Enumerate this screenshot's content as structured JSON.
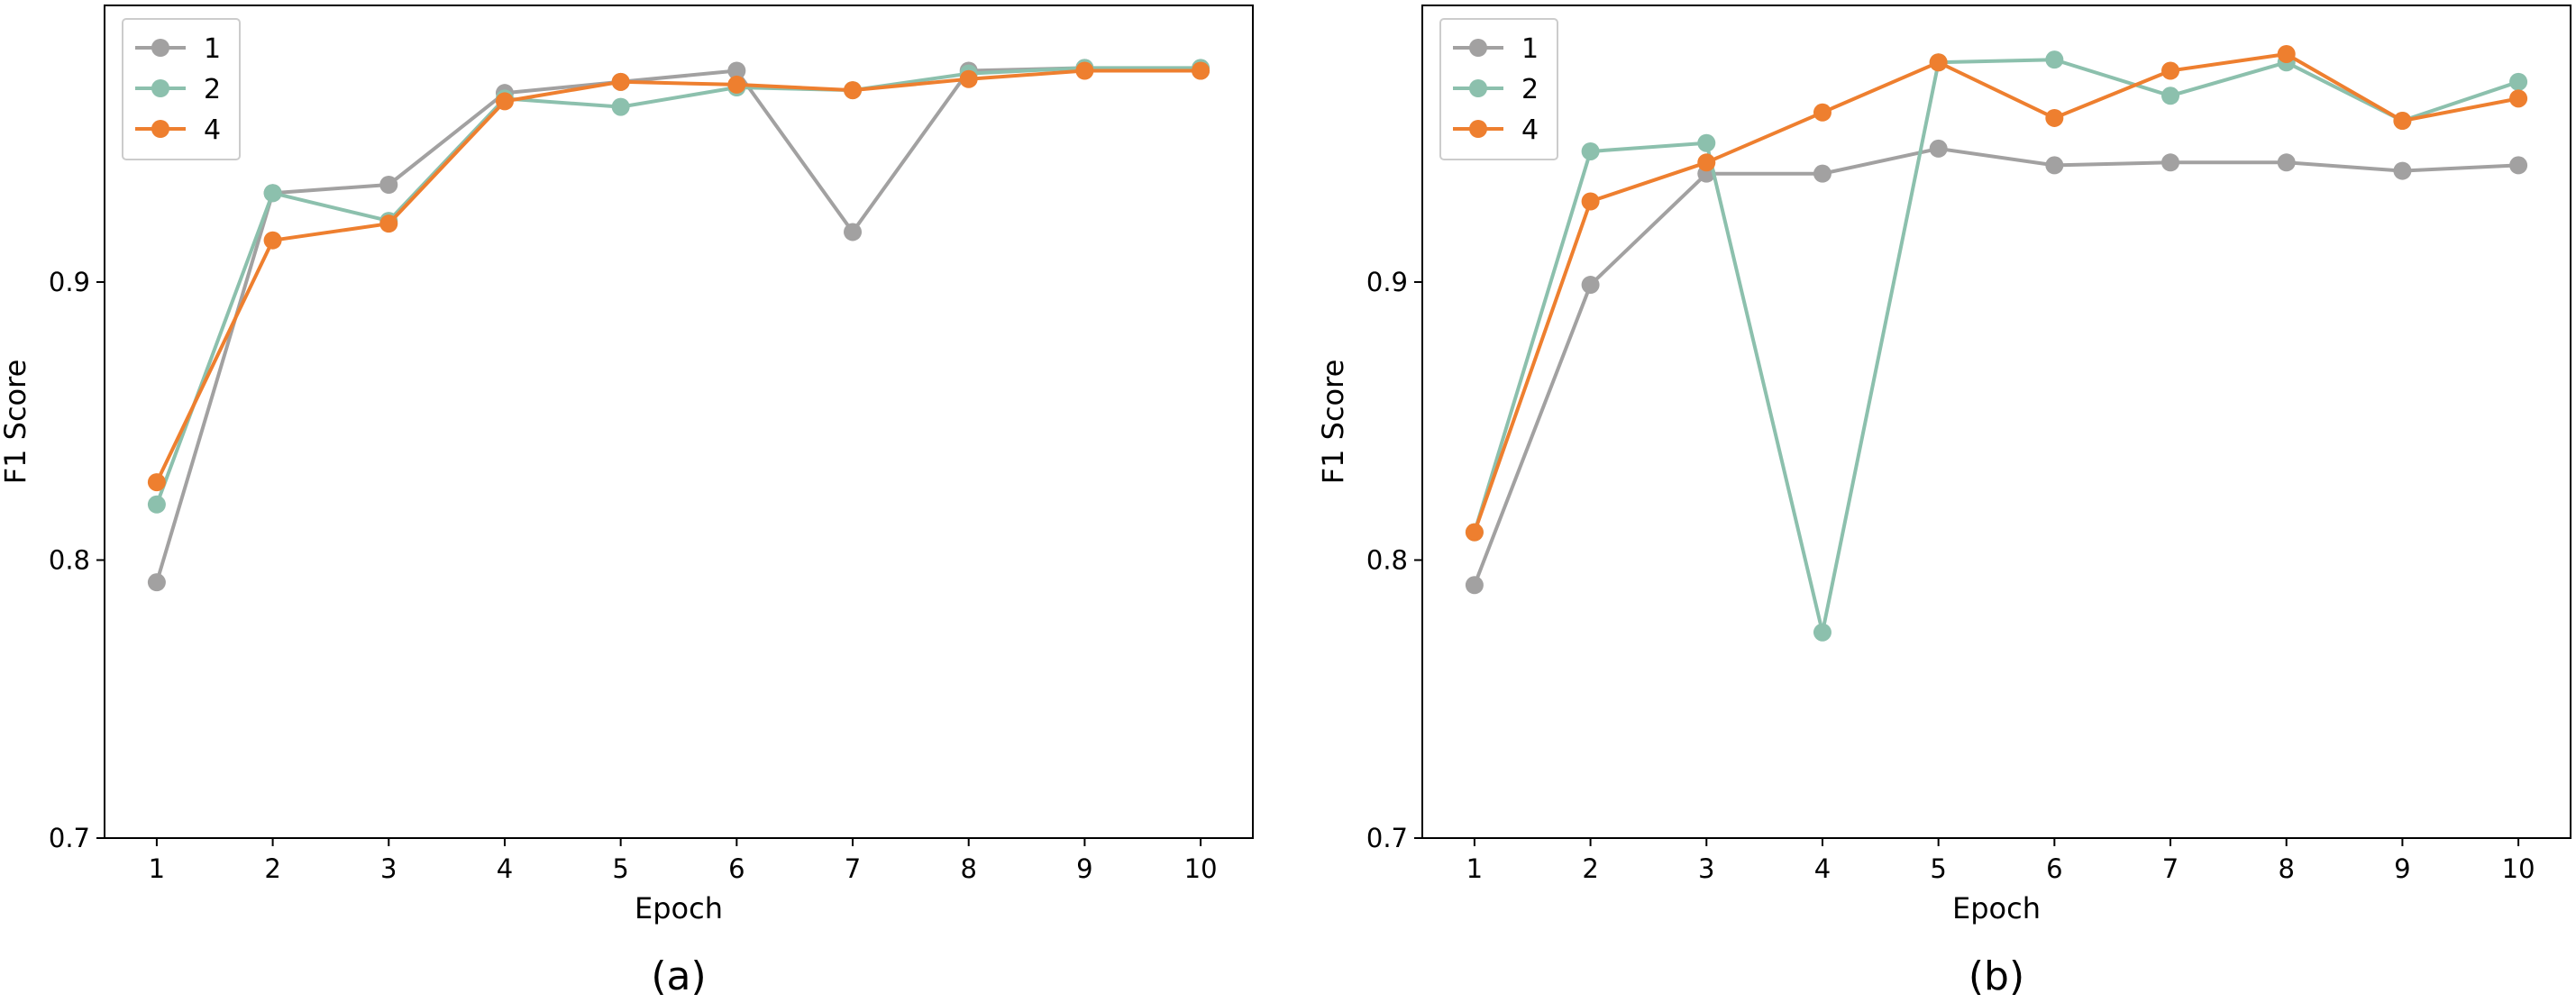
{
  "chart_data": [
    {
      "type": "line",
      "caption": "(a)",
      "xlabel": "Epoch",
      "ylabel": "F1 Score",
      "x": [
        1,
        2,
        3,
        4,
        5,
        6,
        7,
        8,
        9,
        10
      ],
      "xticks": [
        "1",
        "2",
        "3",
        "4",
        "5",
        "6",
        "7",
        "8",
        "9",
        "10"
      ],
      "yticks": [
        {
          "value": 0.7,
          "label": "0.7"
        },
        {
          "value": 0.8,
          "label": "0.8"
        },
        {
          "value": 0.9,
          "label": "0.9"
        }
      ],
      "xlim": [
        0.55,
        10.45
      ],
      "ylim": [
        0.7,
        0.9995
      ],
      "legend_position": "top-left",
      "series": [
        {
          "name": "1",
          "color": "#a2a1a1",
          "values": [
            0.792,
            0.932,
            0.935,
            0.968,
            0.972,
            0.976,
            0.918,
            0.976,
            0.977,
            0.976
          ]
        },
        {
          "name": "2",
          "color": "#8cc0ad",
          "values": [
            0.82,
            0.932,
            0.922,
            0.966,
            0.963,
            0.97,
            0.969,
            0.975,
            0.977,
            0.977
          ]
        },
        {
          "name": "4",
          "color": "#ee7f2f",
          "values": [
            0.828,
            0.915,
            0.921,
            0.965,
            0.972,
            0.971,
            0.969,
            0.973,
            0.976,
            0.976
          ]
        }
      ]
    },
    {
      "type": "line",
      "caption": "(b)",
      "xlabel": "Epoch",
      "ylabel": "F1 Score",
      "x": [
        1,
        2,
        3,
        4,
        5,
        6,
        7,
        8,
        9,
        10
      ],
      "xticks": [
        "1",
        "2",
        "3",
        "4",
        "5",
        "6",
        "7",
        "8",
        "9",
        "10"
      ],
      "yticks": [
        {
          "value": 0.7,
          "label": "0.7"
        },
        {
          "value": 0.8,
          "label": "0.8"
        },
        {
          "value": 0.9,
          "label": "0.9"
        }
      ],
      "xlim": [
        0.55,
        10.45
      ],
      "ylim": [
        0.7,
        0.9995
      ],
      "legend_position": "top-left",
      "series": [
        {
          "name": "1",
          "color": "#a2a1a1",
          "values": [
            0.791,
            0.899,
            0.939,
            0.939,
            0.948,
            0.942,
            0.943,
            0.943,
            0.94,
            0.942
          ]
        },
        {
          "name": "2",
          "color": "#8cc0ad",
          "values": [
            0.81,
            0.947,
            0.95,
            0.774,
            0.979,
            0.98,
            0.967,
            0.979,
            0.958,
            0.972
          ]
        },
        {
          "name": "4",
          "color": "#ee7f2f",
          "values": [
            0.81,
            0.929,
            0.943,
            0.961,
            0.979,
            0.959,
            0.976,
            0.982,
            0.958,
            0.966
          ]
        }
      ]
    }
  ]
}
